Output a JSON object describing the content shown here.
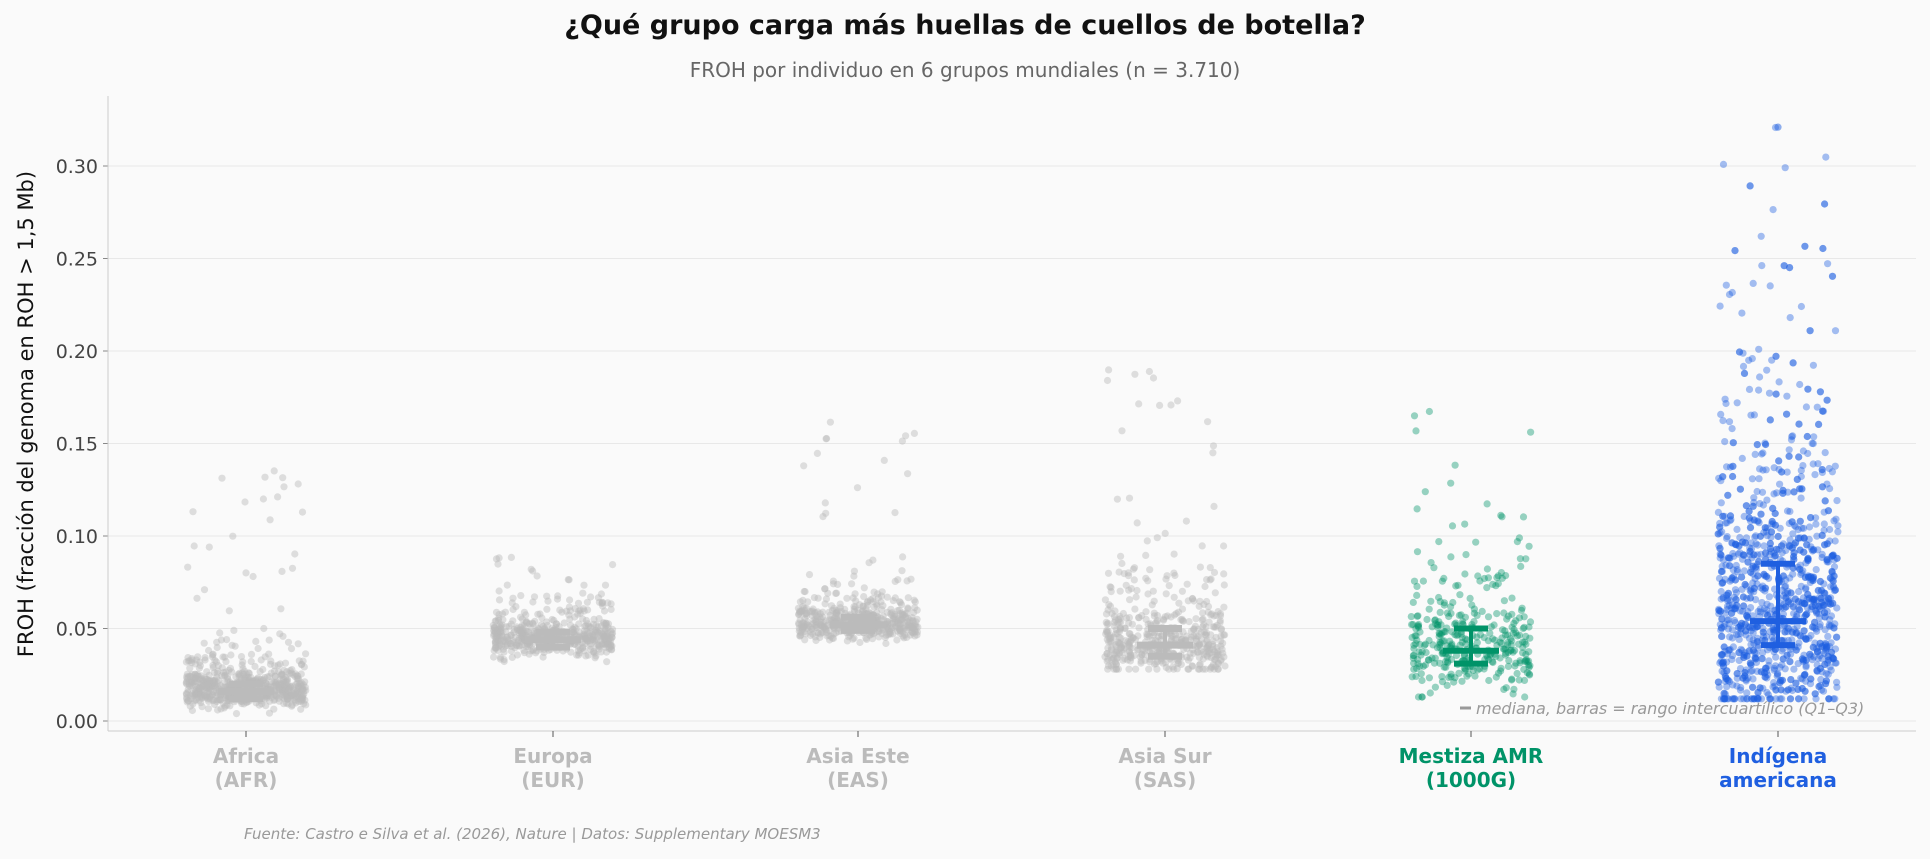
{
  "chart_data": {
    "type": "scatter",
    "title": "¿Qué grupo carga más huellas de cuellos de botella?",
    "subtitle": "FROH por individuo en 6 grupos mundiales (n = 3.710)",
    "ylabel": "FROH (fracción del genoma en ROH > 1,5 Mb)",
    "xlabel": "",
    "ylim": [
      -0.005,
      0.335
    ],
    "yticks": [
      "0.00",
      "0.05",
      "0.10",
      "0.15",
      "0.20",
      "0.25",
      "0.30"
    ],
    "grid": "horizontal",
    "annotation": "mediana, barras = rango intercuartílico (Q1–Q3)",
    "source": "Fuente: Castro e Silva et al. (2026), Nature | Datos: Supplementary MOESM3",
    "groups": [
      {
        "label_line1": "Africa",
        "label_line2": "(AFR)",
        "color": "#bbbbbb",
        "median": 0.016,
        "q1": 0.012,
        "q3": 0.02,
        "max": 0.139
      },
      {
        "label_line1": "Europa",
        "label_line2": "(EUR)",
        "color": "#bbbbbb",
        "median": 0.044,
        "q1": 0.04,
        "q3": 0.048,
        "max": 0.089
      },
      {
        "label_line1": "Asia Este",
        "label_line2": "(EAS)",
        "color": "#bbbbbb",
        "median": 0.052,
        "q1": 0.049,
        "q3": 0.056,
        "max": 0.169
      },
      {
        "label_line1": "Asia Sur",
        "label_line2": "(SAS)",
        "color": "#bbbbbb",
        "median": 0.041,
        "q1": 0.035,
        "q3": 0.05,
        "max": 0.199
      },
      {
        "label_line1": "Mestiza AMR",
        "label_line2": "(1000G)",
        "color": "#009368",
        "median": 0.038,
        "q1": 0.031,
        "q3": 0.05,
        "max": 0.169
      },
      {
        "label_line1": "Indígena",
        "label_line2": "americana",
        "color": "#1f5fe0",
        "median": 0.054,
        "q1": 0.041,
        "q3": 0.085,
        "max": 0.321
      }
    ]
  }
}
